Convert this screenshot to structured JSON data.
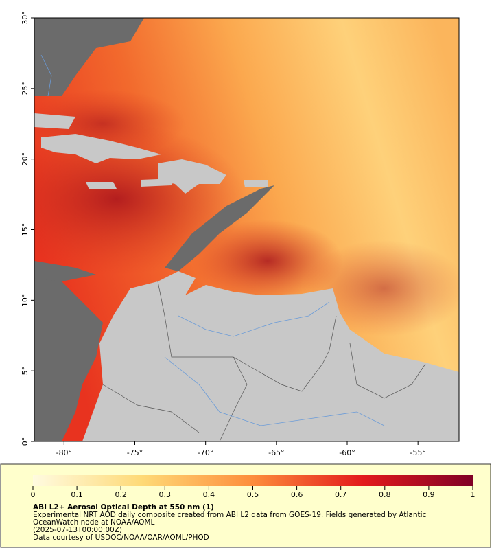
{
  "map": {
    "lon_range": [
      -82.1,
      -52.1
    ],
    "lat_range": [
      0,
      30
    ],
    "lat_ticks": [
      {
        "value": 0,
        "label": "0°"
      },
      {
        "value": 5,
        "label": "5°"
      },
      {
        "value": 10,
        "label": "10°"
      },
      {
        "value": 15,
        "label": "15°"
      },
      {
        "value": 20,
        "label": "20°"
      },
      {
        "value": 25,
        "label": "25°"
      },
      {
        "value": 30,
        "label": "30°"
      }
    ],
    "lon_ticks": [
      {
        "value": -80,
        "label": "-80°"
      },
      {
        "value": -75,
        "label": "-75°"
      },
      {
        "value": -70,
        "label": "-70°"
      },
      {
        "value": -65,
        "label": "-65°"
      },
      {
        "value": -60,
        "label": "-60°"
      },
      {
        "value": -55,
        "label": "-55°"
      }
    ]
  },
  "colorbar": {
    "range": [
      0,
      1
    ],
    "ticks": [
      0,
      0.1,
      0.2,
      0.3,
      0.4,
      0.5,
      0.6,
      0.7,
      0.8,
      0.9,
      1
    ],
    "colors": [
      "#fffbe0",
      "#fed976",
      "#fd8d3c",
      "#e31a1c",
      "#800026"
    ]
  },
  "caption": {
    "title": "ABI L2+ Aerosol Optical Depth at 550 nm (1)",
    "lines": [
      "Experimental NRT AOD daily composite created from ABI L2 data from GOES-19. Fields generated by Atlantic",
      "OceanWatch node at NOAA/AOML",
      "(2025-07-13T00:00:00Z)",
      "Data courtesy of USDOC/NOAA/OAR/AOML/PHOD"
    ]
  }
}
